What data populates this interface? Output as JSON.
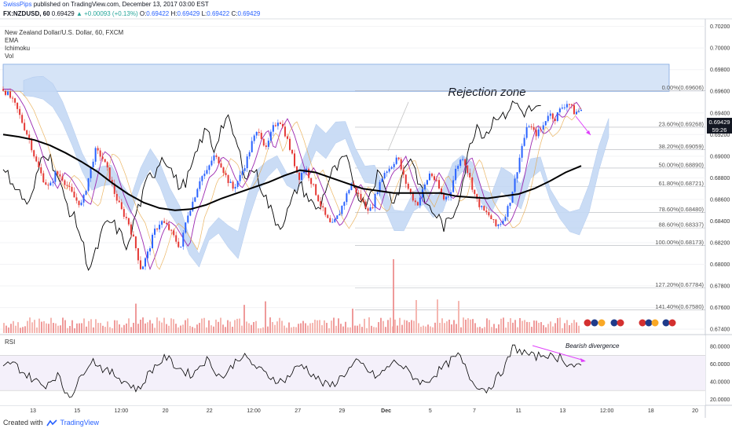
{
  "header": {
    "author": "SwissPips",
    "published": "published on TradingView.com, December 13, 2017 03:00 EST",
    "symbol": "FX:NZDUSD, 60",
    "last": "0.69429",
    "change": "+0.00093 (+0.13%)",
    "o_label": "O:",
    "o_value": "0.69422",
    "h_label": "H:",
    "h_value": "0.69429",
    "l_label": "L:",
    "l_value": "0.69422",
    "c_label": "C:",
    "c_value": "0.69429"
  },
  "legend": {
    "title": "New Zealand Dollar/U.S. Dollar, 60, FXCM",
    "ema": "EMA",
    "ichimoku": "Ichimoku",
    "vol": "Vol"
  },
  "annotations": {
    "zone_label": "Rejection zone",
    "divergence_label": "Bearish divergence"
  },
  "badges": {
    "price": "0.69429",
    "countdown": "59:26"
  },
  "footer": {
    "created_with": "Created with",
    "brand": "TradingView"
  },
  "colors": {
    "candle_up": "#2962ff",
    "candle_down": "#e53935",
    "ema": "#000000",
    "cloud": "#c5d9f5",
    "conversion": "#9c27b0",
    "zone": "#d6e4f7",
    "divergence": "#e040fb",
    "volume": "#ef9a9a"
  },
  "chart_data": {
    "type": "line",
    "title": "New Zealand Dollar/U.S. Dollar, 60, FXCM",
    "x_ticks": [
      "13",
      "15",
      "12:00",
      "20",
      "22",
      "12:00",
      "27",
      "29",
      "Dec",
      "5",
      "7",
      "11",
      "13",
      "12:00",
      "18",
      "20"
    ],
    "y_ticks": [
      "0.70200",
      "0.70000",
      "0.69800",
      "0.69600",
      "0.69400",
      "0.69200",
      "0.69000",
      "0.68800",
      "0.68600",
      "0.68400",
      "0.68200",
      "0.68000",
      "0.67800",
      "0.67600",
      "0.67400"
    ],
    "ylim": [
      0.6735,
      0.7027
    ],
    "price_path": [
      0.6962,
      0.6955,
      0.6945,
      0.693,
      0.6915,
      0.6895,
      0.688,
      0.687,
      0.6885,
      0.688,
      0.687,
      0.686,
      0.6855,
      0.688,
      0.6905,
      0.69,
      0.6885,
      0.6865,
      0.685,
      0.684,
      0.682,
      0.6795,
      0.681,
      0.683,
      0.684,
      0.6835,
      0.6825,
      0.6815,
      0.6845,
      0.686,
      0.688,
      0.6885,
      0.69,
      0.6895,
      0.688,
      0.687,
      0.688,
      0.6895,
      0.6915,
      0.6925,
      0.6905,
      0.6925,
      0.6935,
      0.692,
      0.69,
      0.688,
      0.689,
      0.6875,
      0.686,
      0.6845,
      0.6835,
      0.6845,
      0.686,
      0.6875,
      0.6865,
      0.6855,
      0.685,
      0.687,
      0.6885,
      0.689,
      0.69,
      0.688,
      0.6865,
      0.6855,
      0.687,
      0.6885,
      0.6875,
      0.686,
      0.6865,
      0.689,
      0.69,
      0.688,
      0.686,
      0.685,
      0.6845,
      0.6835,
      0.684,
      0.6855,
      0.688,
      0.691,
      0.693,
      0.692,
      0.6925,
      0.694,
      0.6935,
      0.6945,
      0.695,
      0.694,
      0.6943
    ],
    "ema_path": [
      0.692,
      0.6918,
      0.6915,
      0.691,
      0.6903,
      0.6895,
      0.6886,
      0.6875,
      0.6865,
      0.6857,
      0.6852,
      0.685,
      0.6851,
      0.6855,
      0.6861,
      0.6866,
      0.6871,
      0.6876,
      0.6882,
      0.6887,
      0.6885,
      0.688,
      0.6875,
      0.687,
      0.6868,
      0.6866,
      0.6866,
      0.6866,
      0.6866,
      0.6863,
      0.6862,
      0.6861,
      0.6863,
      0.6865,
      0.687,
      0.6877,
      0.6885,
      0.6891
    ],
    "fib_levels": [
      {
        "label": "0.00%(0.69606)",
        "value": 0.69606
      },
      {
        "label": "23.60%(0.69268)",
        "value": 0.69268
      },
      {
        "label": "38.20%(0.69059)",
        "value": 0.69059
      },
      {
        "label": "50.00%(0.68890)",
        "value": 0.6889
      },
      {
        "label": "61.80%(0.68721)",
        "value": 0.68721
      },
      {
        "label": "78.60%(0.68480)",
        "value": 0.6848
      },
      {
        "label": "88.60%(0.68337)",
        "value": 0.68337
      },
      {
        "label": "100.00%(0.68173)",
        "value": 0.68173
      },
      {
        "label": "127.20%(0.67784)",
        "value": 0.67784
      },
      {
        "label": "141.40%(0.67580)",
        "value": 0.6758
      }
    ],
    "rejection_zone": [
      0.696,
      0.6985
    ],
    "rsi": {
      "y_ticks": [
        "80.0000",
        "60.0000",
        "40.0000",
        "20.0000"
      ],
      "ylim": [
        15,
        90
      ],
      "bands": [
        70,
        30
      ],
      "path": [
        55,
        62,
        58,
        50,
        45,
        40,
        35,
        42,
        48,
        30,
        25,
        38,
        55,
        65,
        60,
        52,
        50,
        45,
        40,
        35,
        30,
        45,
        55,
        62,
        68,
        60,
        55,
        50,
        48,
        60,
        65,
        55,
        45,
        50,
        62,
        70,
        65,
        58,
        52,
        47,
        43,
        40,
        46,
        55,
        60,
        52,
        45,
        38,
        35,
        40,
        48,
        55,
        62,
        58,
        50,
        45,
        52,
        60,
        63,
        55,
        48,
        42,
        38,
        45,
        52,
        58,
        65,
        70,
        55,
        40,
        35,
        30,
        38,
        48,
        60,
        80,
        75,
        72,
        68,
        70,
        72,
        65,
        70,
        60,
        58,
        55
      ]
    }
  }
}
